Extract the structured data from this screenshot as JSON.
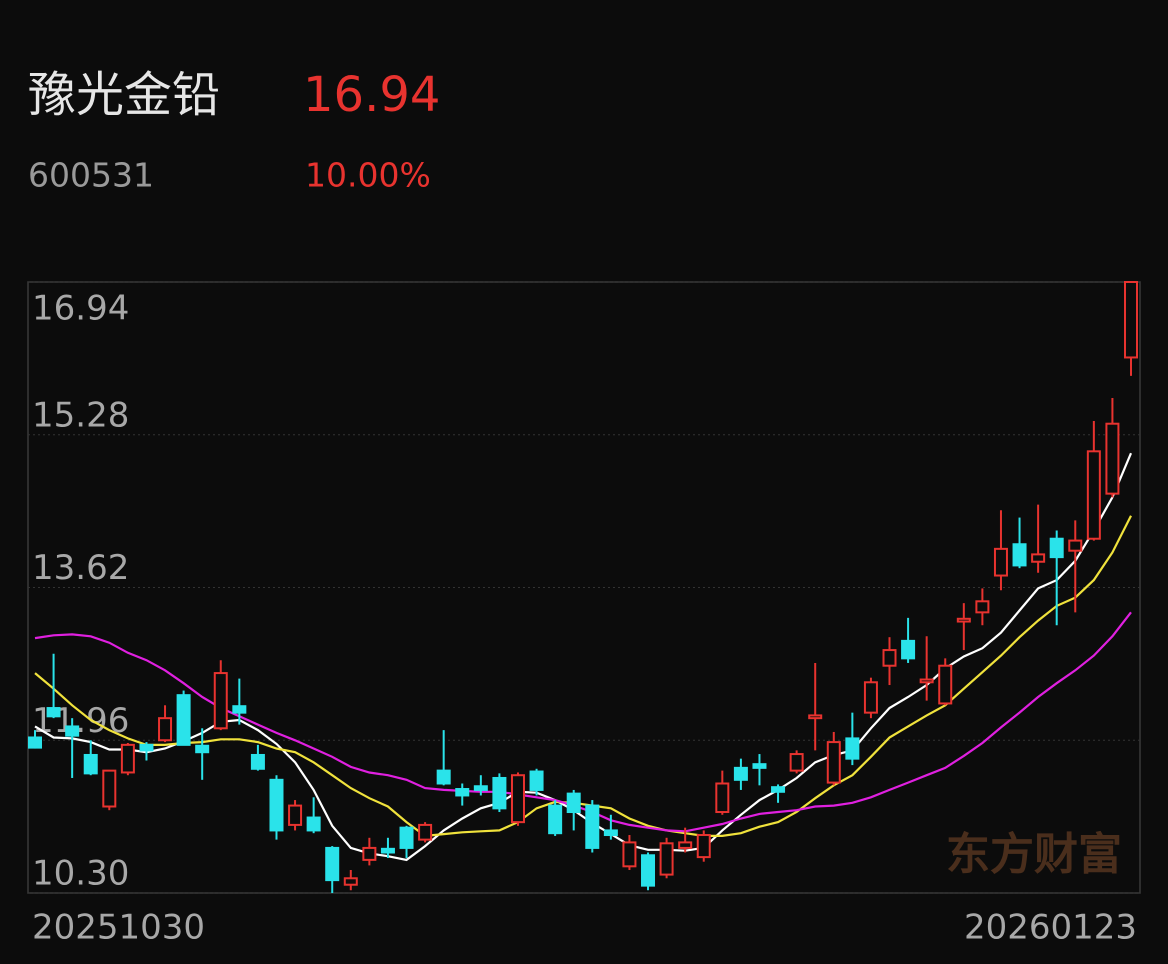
{
  "header": {
    "name": "豫光金铅",
    "price": "16.94",
    "code": "600531",
    "change": "10.00%"
  },
  "watermark": "东方财富",
  "chart_data": {
    "type": "candlestick",
    "categories": [
      "20251030",
      null,
      null,
      null,
      null,
      null,
      null,
      null,
      null,
      null,
      null,
      null,
      null,
      null,
      null,
      null,
      null,
      null,
      null,
      null,
      null,
      null,
      null,
      null,
      null,
      null,
      null,
      null,
      null,
      null,
      null,
      null,
      null,
      null,
      null,
      null,
      null,
      null,
      null,
      null,
      null,
      null,
      null,
      null,
      null,
      null,
      null,
      null,
      null,
      null,
      null,
      null,
      null,
      null,
      null,
      null,
      null,
      null,
      null,
      "20260123"
    ],
    "open": [
      11.99,
      12.31,
      12.11,
      11.8,
      11.24,
      11.61,
      11.91,
      11.96,
      12.45,
      11.9,
      12.09,
      12.33,
      11.8,
      11.53,
      11.04,
      11.12,
      10.79,
      10.39,
      10.66,
      10.78,
      11.01,
      10.88,
      11.63,
      11.43,
      11.46,
      11.55,
      11.07,
      11.62,
      11.25,
      11.38,
      11.25,
      10.98,
      10.59,
      10.71,
      10.5,
      10.79,
      10.69,
      11.18,
      11.66,
      11.7,
      11.45,
      11.63,
      12.2,
      11.5,
      11.98,
      12.26,
      12.77,
      13.04,
      12.59,
      12.36,
      13.25,
      13.35,
      13.75,
      14.09,
      13.9,
      14.15,
      14.02,
      14.15,
      14.64,
      16.12
    ],
    "high": [
      12.07,
      12.9,
      12.2,
      11.96,
      11.63,
      11.93,
      11.94,
      12.34,
      12.5,
      12.09,
      12.83,
      12.63,
      11.91,
      11.58,
      11.31,
      11.34,
      10.81,
      10.55,
      10.9,
      10.9,
      11.03,
      11.07,
      12.07,
      11.49,
      11.58,
      11.6,
      11.61,
      11.65,
      11.31,
      11.42,
      11.31,
      11.15,
      10.93,
      10.74,
      10.9,
      11.01,
      10.98,
      11.63,
      11.76,
      11.81,
      11.48,
      11.85,
      12.8,
      12.05,
      12.26,
      12.64,
      13.08,
      13.29,
      13.09,
      12.85,
      13.45,
      13.61,
      14.46,
      14.38,
      14.52,
      14.24,
      14.35,
      15.43,
      15.68,
      16.94
    ],
    "low": [
      11.87,
      12.2,
      11.55,
      11.58,
      11.2,
      11.58,
      11.74,
      11.94,
      11.91,
      11.53,
      12.07,
      12.13,
      11.63,
      10.88,
      10.98,
      10.95,
      10.3,
      10.33,
      10.6,
      10.68,
      10.68,
      10.85,
      11.47,
      11.25,
      11.36,
      11.18,
      11.03,
      11.36,
      10.92,
      10.98,
      10.74,
      10.88,
      10.55,
      10.33,
      10.46,
      10.74,
      10.64,
      11.15,
      11.42,
      11.47,
      11.28,
      11.6,
      11.85,
      11.47,
      11.69,
      12.2,
      12.56,
      12.8,
      12.39,
      12.34,
      12.94,
      13.21,
      13.59,
      13.83,
      13.78,
      13.21,
      13.35,
      14.13,
      14.6,
      15.92
    ],
    "close": [
      11.88,
      12.22,
      12.01,
      11.6,
      11.63,
      11.91,
      11.85,
      12.2,
      11.91,
      11.83,
      12.69,
      12.26,
      11.65,
      10.98,
      11.25,
      10.98,
      10.44,
      10.46,
      10.79,
      10.74,
      10.79,
      11.04,
      11.49,
      11.36,
      11.42,
      11.22,
      11.58,
      11.42,
      10.95,
      11.18,
      10.79,
      10.93,
      10.85,
      10.38,
      10.84,
      10.85,
      10.93,
      11.49,
      11.53,
      11.66,
      11.4,
      11.81,
      12.23,
      11.94,
      11.76,
      12.59,
      12.94,
      12.85,
      12.62,
      12.77,
      13.28,
      13.47,
      14.04,
      13.86,
      13.98,
      13.95,
      14.13,
      15.1,
      15.4,
      16.94
    ],
    "up_color": "#e8332f",
    "down_color": "#2ae3ea",
    "lines": [
      {
        "color": "#ffffff",
        "values": [
          12.11,
          11.99,
          11.98,
          11.94,
          11.86,
          11.86,
          11.83,
          11.87,
          11.95,
          12.04,
          12.16,
          12.18,
          12.07,
          11.92,
          11.72,
          11.42,
          11.03,
          10.79,
          10.73,
          10.7,
          10.66,
          10.81,
          10.98,
          11.11,
          11.22,
          11.28,
          11.4,
          11.39,
          11.31,
          11.2,
          11.06,
          10.94,
          10.82,
          10.77,
          10.77,
          10.76,
          10.79,
          10.98,
          11.15,
          11.31,
          11.42,
          11.55,
          11.72,
          11.8,
          11.85,
          12.09,
          12.31,
          12.43,
          12.56,
          12.74,
          12.87,
          12.96,
          13.13,
          13.37,
          13.61,
          13.7,
          13.91,
          14.24,
          14.6,
          15.08
        ]
      },
      {
        "color": "#f0e23c",
        "values": [
          12.69,
          12.52,
          12.34,
          12.18,
          12.07,
          11.98,
          11.91,
          11.91,
          11.93,
          11.94,
          11.97,
          11.97,
          11.94,
          11.87,
          11.83,
          11.72,
          11.58,
          11.44,
          11.33,
          11.24,
          11.07,
          10.92,
          10.94,
          10.96,
          10.97,
          10.98,
          11.07,
          11.22,
          11.29,
          11.28,
          11.25,
          11.22,
          11.11,
          11.03,
          10.98,
          10.95,
          10.92,
          10.92,
          10.95,
          11.02,
          11.07,
          11.18,
          11.33,
          11.47,
          11.58,
          11.78,
          11.99,
          12.11,
          12.23,
          12.34,
          12.52,
          12.7,
          12.88,
          13.08,
          13.26,
          13.42,
          13.51,
          13.7,
          14.0,
          14.4
        ]
      },
      {
        "color": "#e020e0",
        "values": [
          13.07,
          13.1,
          13.11,
          13.09,
          13.02,
          12.91,
          12.83,
          12.72,
          12.58,
          12.43,
          12.31,
          12.22,
          12.13,
          12.04,
          11.96,
          11.87,
          11.78,
          11.67,
          11.61,
          11.58,
          11.53,
          11.44,
          11.42,
          11.41,
          11.4,
          11.4,
          11.37,
          11.34,
          11.31,
          11.25,
          11.18,
          11.09,
          11.04,
          11.01,
          10.98,
          10.97,
          11.01,
          11.05,
          11.11,
          11.16,
          11.18,
          11.2,
          11.24,
          11.25,
          11.28,
          11.34,
          11.42,
          11.5,
          11.58,
          11.66,
          11.79,
          11.93,
          12.1,
          12.26,
          12.43,
          12.58,
          12.72,
          12.88,
          13.09,
          13.35
        ]
      }
    ],
    "ylim": [
      10.3,
      16.94
    ],
    "yticks": [
      {
        "value": 10.3,
        "label": "10.30"
      },
      11.96,
      13.62,
      15.28,
      16.94
    ],
    "grid": true
  }
}
